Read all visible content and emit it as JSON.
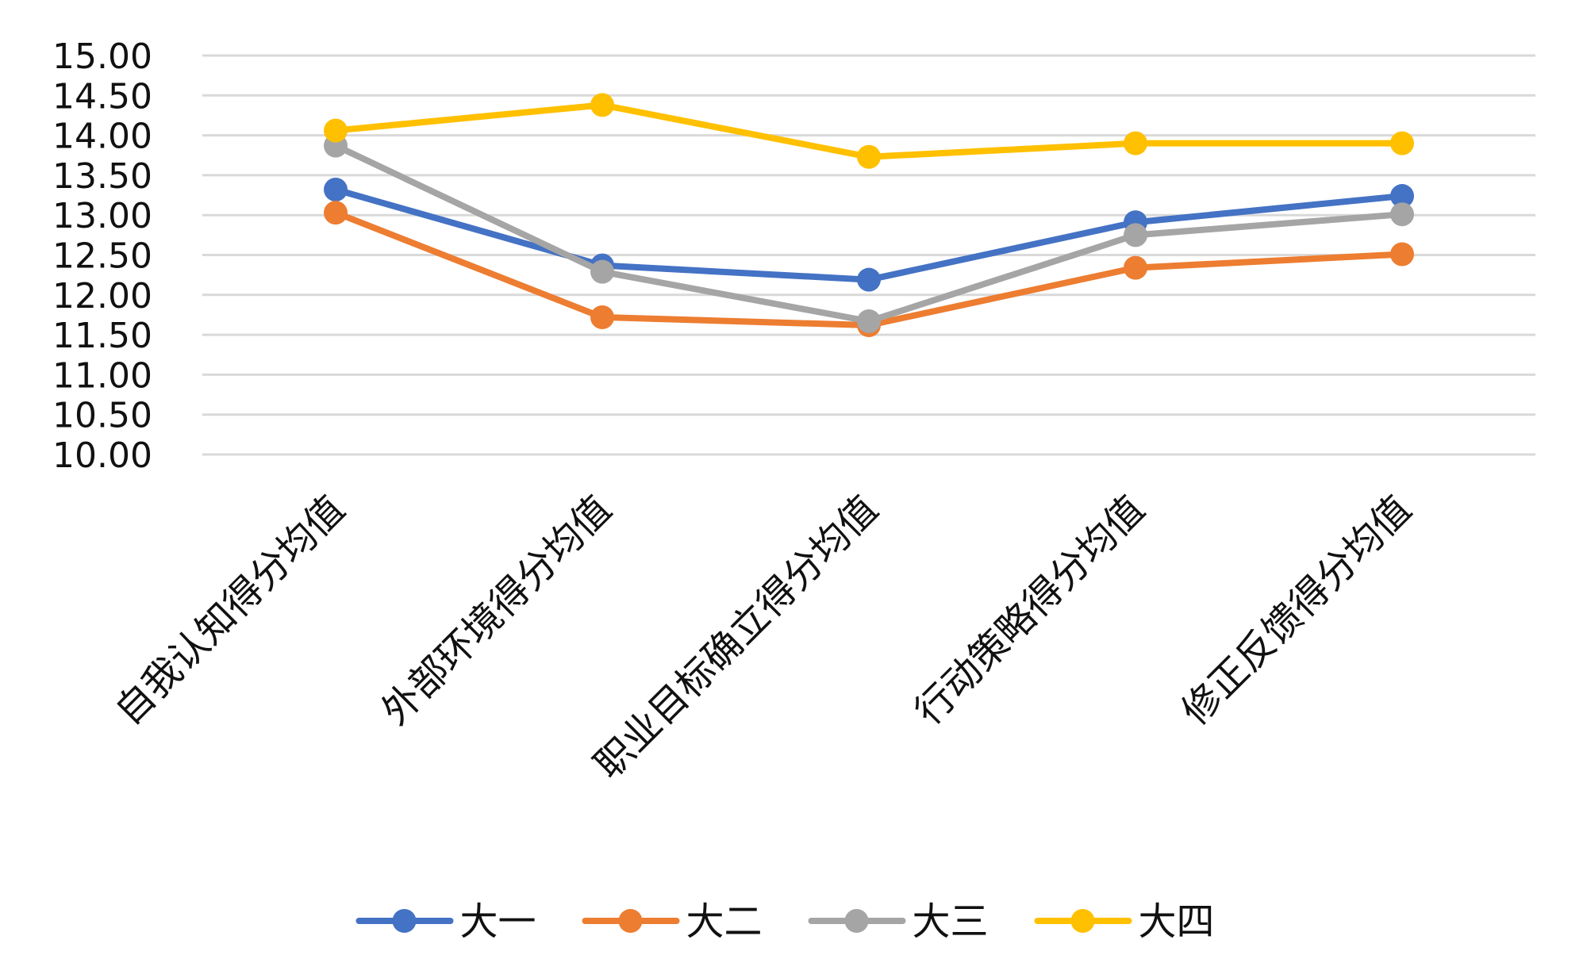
{
  "chart_data": {
    "type": "line",
    "title": "",
    "xlabel": "",
    "ylabel": "",
    "categories": [
      "自我认知得分均值",
      "外部环境得分均值",
      "职业目标确立得分均值",
      "行动策略得分均值",
      "修正反馈得分均值"
    ],
    "series": [
      {
        "name": "大一",
        "color": "#4472C4",
        "values": [
          13.32,
          12.37,
          12.19,
          12.91,
          13.24
        ]
      },
      {
        "name": "大二",
        "color": "#ED7D31",
        "values": [
          13.03,
          11.72,
          11.62,
          12.34,
          12.51
        ]
      },
      {
        "name": "大三",
        "color": "#A5A5A5",
        "values": [
          13.87,
          12.29,
          11.67,
          12.75,
          13.01
        ]
      },
      {
        "name": "大四",
        "color": "#FFC000",
        "values": [
          14.06,
          14.38,
          13.73,
          13.9,
          13.9
        ]
      }
    ],
    "ylim": [
      10.0,
      15.0
    ],
    "yticks": [
      "10.00",
      "10.50",
      "11.00",
      "11.50",
      "12.00",
      "12.50",
      "13.00",
      "13.50",
      "14.00",
      "14.50",
      "15.00"
    ],
    "grid": true,
    "legend_position": "bottom"
  }
}
